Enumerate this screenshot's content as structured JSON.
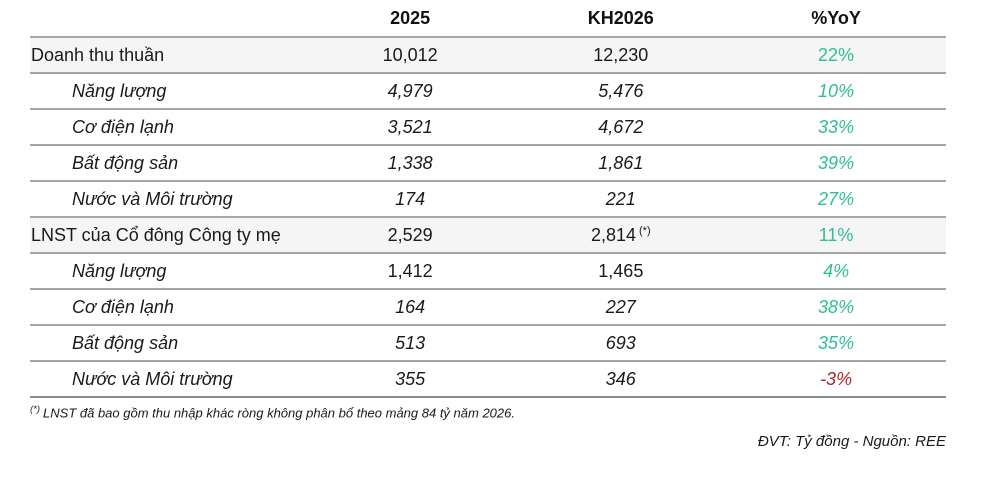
{
  "colors": {
    "positive": "#2ebe96",
    "negative": "#b2222e",
    "band_background": "#f5f5f5",
    "border": "#a6a6a6"
  },
  "chart_data": {
    "type": "table",
    "columns": [
      "",
      "2025",
      "KH2026",
      "%YoY"
    ],
    "rows": [
      [
        "Doanh thu thuần",
        10012,
        12230,
        "22%"
      ],
      [
        "Năng lượng",
        4979,
        5476,
        "10%"
      ],
      [
        "Cơ điện lạnh",
        3521,
        4672,
        "33%"
      ],
      [
        "Bất động sản",
        1338,
        1861,
        "39%"
      ],
      [
        "Nước và Môi trường",
        174,
        221,
        "27%"
      ],
      [
        "LNST của Cổ đông Công ty mẹ",
        2529,
        2814,
        "11%"
      ],
      [
        "Năng lượng",
        1412,
        1465,
        "4%"
      ],
      [
        "Cơ điện lạnh",
        164,
        227,
        "38%"
      ],
      [
        "Bất động sản",
        513,
        693,
        "35%"
      ],
      [
        "Nước và Môi trường",
        355,
        346,
        "-3%"
      ]
    ],
    "unit": "Tỷ đồng",
    "source": "REE",
    "notes": "LNST đã bao gồm thu nhập khác ròng không phân bổ theo mảng 84 tỷ năm 2026."
  },
  "table": {
    "headers": {
      "label": "",
      "y2025": "2025",
      "kh2026": "KH2026",
      "yoy": "%YoY"
    },
    "rows": [
      {
        "label": "Doanh thu thuần",
        "v2025": "10,012",
        "kh2026": "12,230",
        "yoy": "22%"
      },
      {
        "label": "Năng lượng",
        "v2025": "4,979",
        "kh2026": "5,476",
        "yoy": "10%"
      },
      {
        "label": "Cơ điện lạnh",
        "v2025": "3,521",
        "kh2026": "4,672",
        "yoy": "33%"
      },
      {
        "label": "Bất động sản",
        "v2025": "1,338",
        "kh2026": "1,861",
        "yoy": "39%"
      },
      {
        "label": "Nước và Môi trường",
        "v2025": "174",
        "kh2026": "221",
        "yoy": "27%"
      },
      {
        "label": "LNST của Cổ đông Công ty mẹ",
        "v2025": "2,529",
        "kh2026": "2,814",
        "kh2026_note": "(*)",
        "yoy": "11%"
      },
      {
        "label": "Năng lượng",
        "v2025": "1,412",
        "kh2026": "1,465",
        "yoy": "4%"
      },
      {
        "label": "Cơ điện lạnh",
        "v2025": "164",
        "kh2026": "227",
        "yoy": "38%"
      },
      {
        "label": "Bất động sản",
        "v2025": "513",
        "kh2026": "693",
        "yoy": "35%"
      },
      {
        "label": "Nước và Môi trường",
        "v2025": "355",
        "kh2026": "346",
        "yoy": "-3%"
      }
    ]
  },
  "footnote": {
    "marker": "(*)",
    "text": "LNST đã bao gồm thu nhập khác ròng không phân bổ theo mảng 84 tỷ năm 2026."
  },
  "source_line": "ĐVT: Tỷ đồng - Nguồn: REE"
}
